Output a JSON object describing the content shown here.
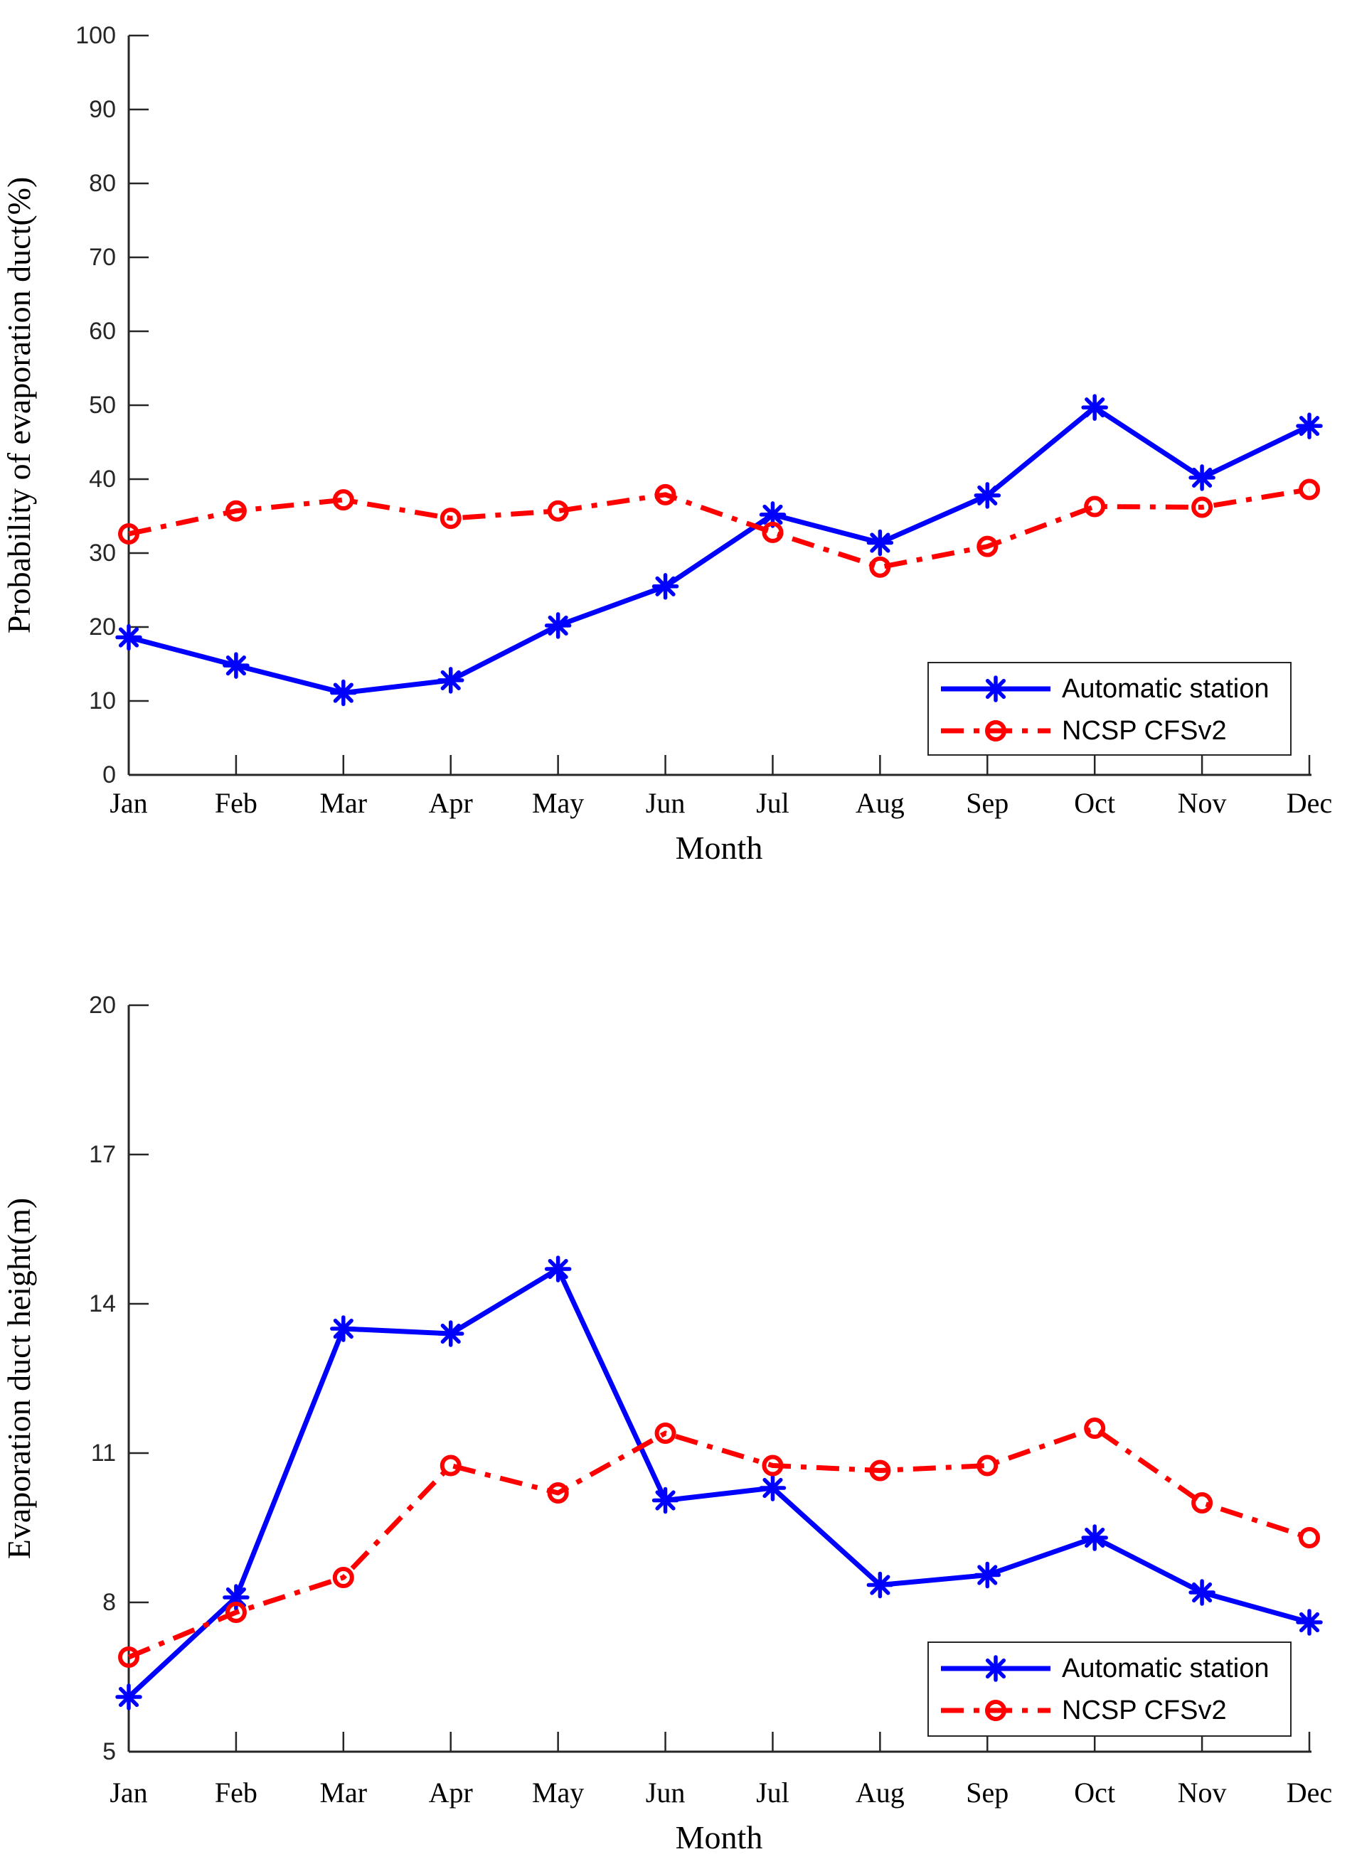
{
  "figure": {
    "background": "#ffffff",
    "axis_color": "#262626",
    "blue_color": "#0000ff",
    "red_color": "#ff0000",
    "legend_border_color": "#262626"
  },
  "chart_data": [
    {
      "type": "line",
      "title": "",
      "xlabel": "Month",
      "ylabel": "Probability of evaporation duct(%)",
      "categories": [
        "Jan",
        "Feb",
        "Mar",
        "Apr",
        "May",
        "Jun",
        "Jul",
        "Aug",
        "Sep",
        "Oct",
        "Nov",
        "Dec"
      ],
      "ylim": [
        0,
        100
      ],
      "yticks": [
        0,
        10,
        20,
        30,
        40,
        50,
        60,
        70,
        80,
        90,
        100
      ],
      "grid": false,
      "legend_position": "lower right",
      "series": [
        {
          "name": "Automatic station",
          "color": "#0000ff",
          "line_style": "solid",
          "marker": "asterisk",
          "values": [
            18.6,
            14.8,
            11.1,
            12.8,
            20.2,
            25.5,
            35.2,
            31.4,
            37.8,
            49.7,
            40.2,
            47.2
          ]
        },
        {
          "name": "NCSP CFSv2",
          "color": "#ff0000",
          "line_style": "dash-dot",
          "marker": "circle",
          "values": [
            32.6,
            35.7,
            37.2,
            34.7,
            35.7,
            37.9,
            32.8,
            28.1,
            30.9,
            36.3,
            36.2,
            38.6
          ]
        }
      ]
    },
    {
      "type": "line",
      "title": "",
      "xlabel": "Month",
      "ylabel": "Evaporation duct height(m)",
      "categories": [
        "Jan",
        "Feb",
        "Mar",
        "Apr",
        "May",
        "Jun",
        "Jul",
        "Aug",
        "Sep",
        "Oct",
        "Nov",
        "Dec"
      ],
      "ylim": [
        5,
        20
      ],
      "yticks": [
        5,
        8,
        11,
        14,
        17,
        20
      ],
      "grid": false,
      "legend_position": "lower right",
      "series": [
        {
          "name": "Automatic station",
          "color": "#0000ff",
          "line_style": "solid",
          "marker": "asterisk",
          "values": [
            6.1,
            8.1,
            13.5,
            13.4,
            14.7,
            10.05,
            10.3,
            8.35,
            8.55,
            9.3,
            8.2,
            7.6
          ]
        },
        {
          "name": "NCSP CFSv2",
          "color": "#ff0000",
          "line_style": "dash-dot",
          "marker": "circle",
          "values": [
            6.9,
            7.8,
            8.5,
            10.75,
            10.2,
            11.4,
            10.75,
            10.65,
            10.75,
            11.5,
            10.0,
            9.3
          ]
        }
      ]
    }
  ]
}
